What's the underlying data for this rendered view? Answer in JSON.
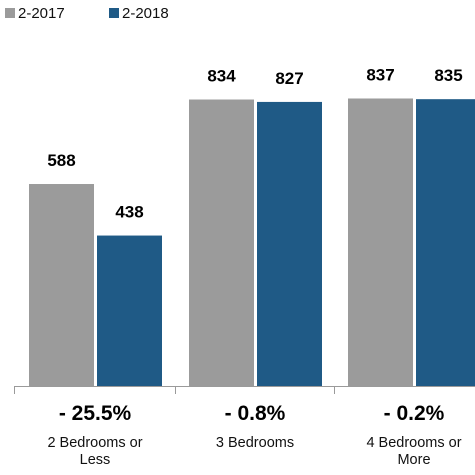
{
  "chart_data": {
    "type": "bar",
    "categories": [
      "2 Bedrooms or Less",
      "3 Bedrooms",
      "4 Bedrooms or More"
    ],
    "category_lines": [
      [
        "2 Bedrooms or",
        "Less"
      ],
      [
        "3 Bedrooms"
      ],
      [
        "4 Bedrooms or",
        "More"
      ]
    ],
    "series": [
      {
        "name": "2-2017",
        "values": [
          588,
          834,
          837
        ],
        "color": "#9b9b9b"
      },
      {
        "name": "2-2018",
        "values": [
          438,
          827,
          835
        ],
        "color": "#1f5a86"
      }
    ],
    "change_labels": [
      "- 25.5%",
      "- 0.8%",
      "- 0.2%"
    ],
    "legend_position": "top-left",
    "ylim": [
      0,
      1000
    ],
    "grid": false
  }
}
